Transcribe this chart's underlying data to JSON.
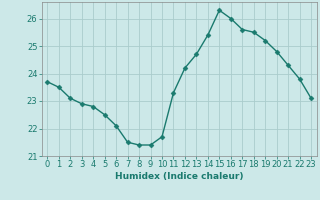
{
  "x": [
    0,
    1,
    2,
    3,
    4,
    5,
    6,
    7,
    8,
    9,
    10,
    11,
    12,
    13,
    14,
    15,
    16,
    17,
    18,
    19,
    20,
    21,
    22,
    23
  ],
  "y": [
    23.7,
    23.5,
    23.1,
    22.9,
    22.8,
    22.5,
    22.1,
    21.5,
    21.4,
    21.4,
    21.7,
    23.3,
    24.2,
    24.7,
    25.4,
    26.3,
    26.0,
    25.6,
    25.5,
    25.2,
    24.8,
    24.3,
    23.8,
    23.1
  ],
  "line_color": "#1a7a6e",
  "marker_color": "#1a7a6e",
  "bg_color": "#cce8e8",
  "grid_color": "#aacccc",
  "xlabel": "Humidex (Indice chaleur)",
  "xlim": [
    -0.5,
    23.5
  ],
  "ylim": [
    21.0,
    26.6
  ],
  "yticks": [
    21,
    22,
    23,
    24,
    25,
    26
  ],
  "xtick_labels": [
    "0",
    "1",
    "2",
    "3",
    "4",
    "5",
    "6",
    "7",
    "8",
    "9",
    "10",
    "11",
    "12",
    "13",
    "14",
    "15",
    "16",
    "17",
    "18",
    "19",
    "20",
    "21",
    "22",
    "23"
  ],
  "xlabel_fontsize": 6.5,
  "tick_fontsize": 6.0,
  "linewidth": 1.0,
  "markersize": 2.5
}
